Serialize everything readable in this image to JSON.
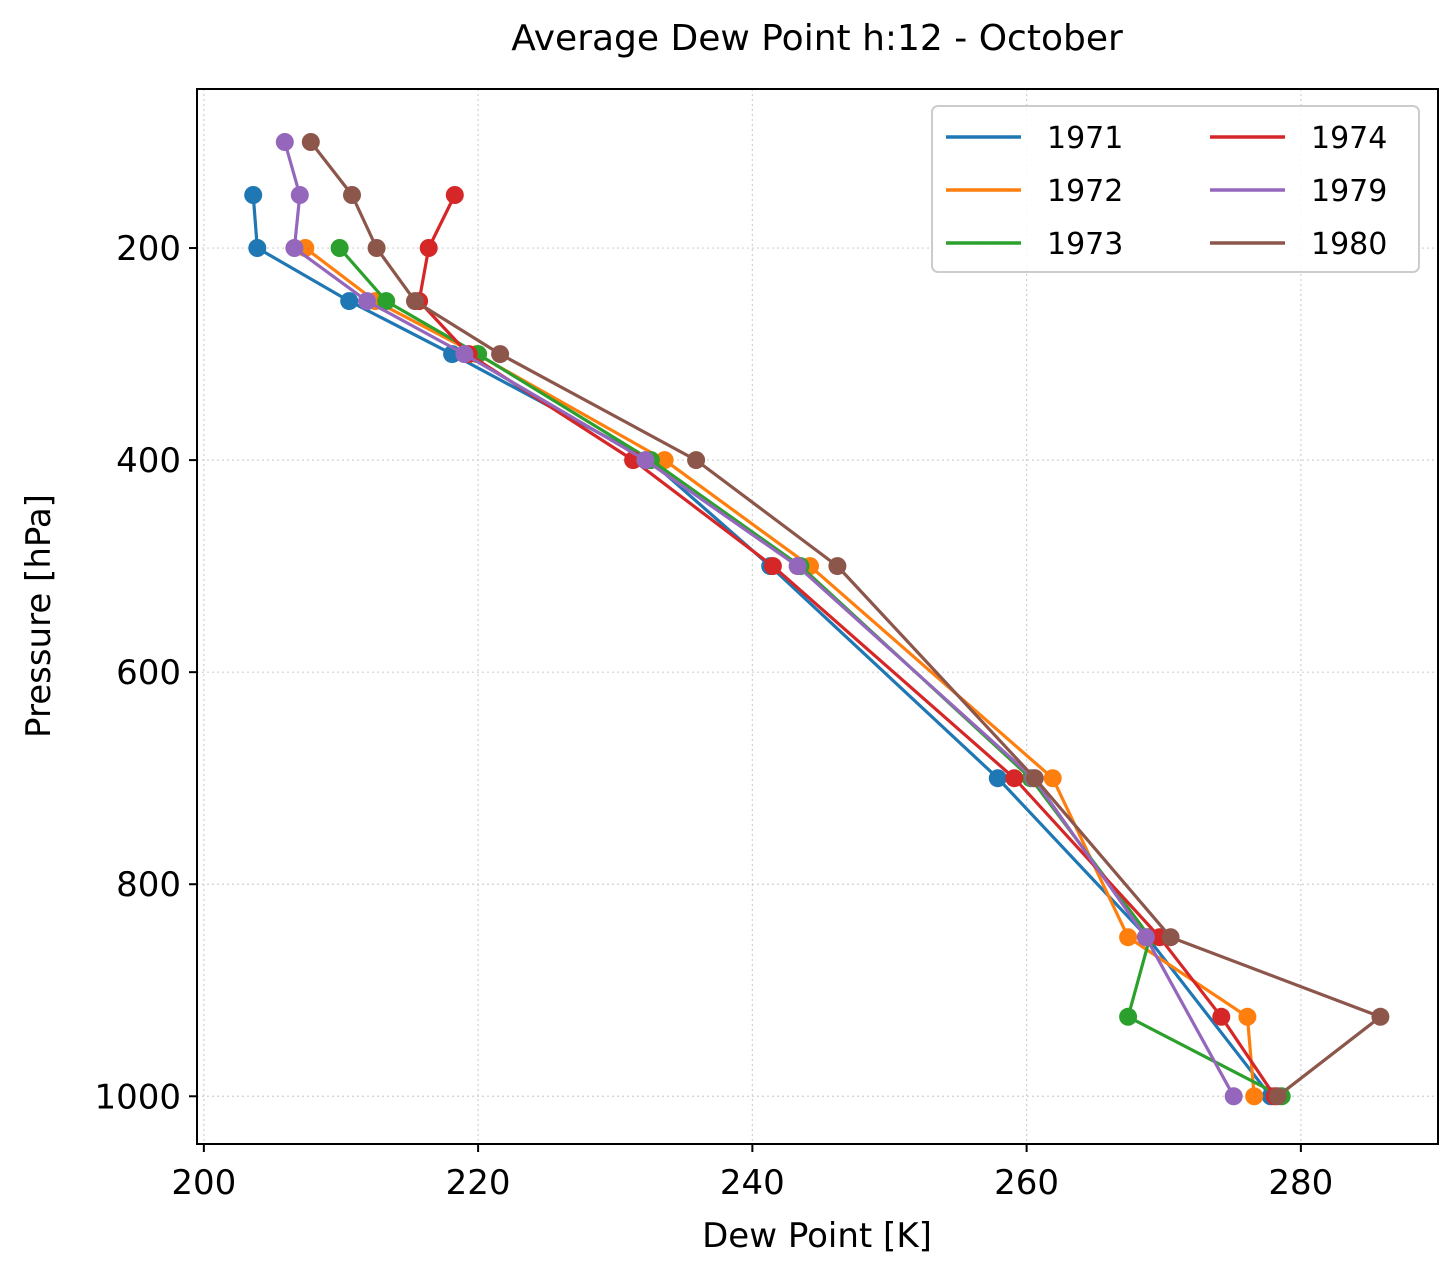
{
  "chart_data": {
    "type": "line",
    "title": "Average Dew Point h:12 - October",
    "xlabel": "Dew Point [K]",
    "ylabel": "Pressure [hPa]",
    "xlim": [
      199.5,
      290
    ],
    "ylim": [
      1045,
      50
    ],
    "y_inverted": true,
    "xticks": [
      200,
      220,
      240,
      260,
      280
    ],
    "yticks": [
      200,
      400,
      600,
      800,
      1000
    ],
    "grid": true,
    "legend_position": "top-right",
    "legend_columns": 2,
    "series": [
      {
        "name": "1971",
        "color": "#1f77b4",
        "points": [
          [
            203.6,
            150
          ],
          [
            203.9,
            200
          ],
          [
            210.6,
            250
          ],
          [
            218.1,
            300
          ],
          [
            232.5,
            400
          ],
          [
            241.3,
            500
          ],
          [
            257.9,
            700
          ],
          [
            268.8,
            850
          ],
          [
            277.8,
            1000
          ]
        ]
      },
      {
        "name": "1972",
        "color": "#ff7f0e",
        "points": [
          [
            207.4,
            200
          ],
          [
            212.5,
            250
          ],
          [
            219.9,
            300
          ],
          [
            233.6,
            400
          ],
          [
            244.2,
            500
          ],
          [
            261.9,
            700
          ],
          [
            267.4,
            850
          ],
          [
            276.1,
            925
          ],
          [
            276.6,
            1000
          ]
        ]
      },
      {
        "name": "1973",
        "color": "#2ca02c",
        "points": [
          [
            209.9,
            200
          ],
          [
            213.3,
            250
          ],
          [
            220.0,
            300
          ],
          [
            232.6,
            400
          ],
          [
            243.5,
            500
          ],
          [
            260.3,
            700
          ],
          [
            269.0,
            850
          ],
          [
            267.4,
            925
          ],
          [
            278.6,
            1000
          ]
        ]
      },
      {
        "name": "1974",
        "color": "#d62728",
        "points": [
          [
            218.3,
            150
          ],
          [
            216.4,
            200
          ],
          [
            215.7,
            250
          ],
          [
            219.3,
            300
          ],
          [
            231.3,
            400
          ],
          [
            241.5,
            500
          ],
          [
            259.1,
            700
          ],
          [
            269.7,
            850
          ],
          [
            274.2,
            925
          ],
          [
            278.1,
            1000
          ]
        ]
      },
      {
        "name": "1979",
        "color": "#9467bd",
        "points": [
          [
            205.9,
            100
          ],
          [
            207.0,
            150
          ],
          [
            206.6,
            200
          ],
          [
            211.9,
            250
          ],
          [
            219.0,
            300
          ],
          [
            232.2,
            400
          ],
          [
            243.3,
            500
          ],
          [
            260.5,
            700
          ],
          [
            268.7,
            850
          ],
          [
            275.1,
            1000
          ]
        ]
      },
      {
        "name": "1980",
        "color": "#8c564b",
        "points": [
          [
            207.8,
            100
          ],
          [
            210.8,
            150
          ],
          [
            212.6,
            200
          ],
          [
            215.4,
            250
          ],
          [
            221.6,
            300
          ],
          [
            235.9,
            400
          ],
          [
            246.2,
            500
          ],
          [
            260.6,
            700
          ],
          [
            270.5,
            850
          ],
          [
            285.8,
            925
          ],
          [
            278.3,
            1000
          ]
        ]
      }
    ]
  }
}
